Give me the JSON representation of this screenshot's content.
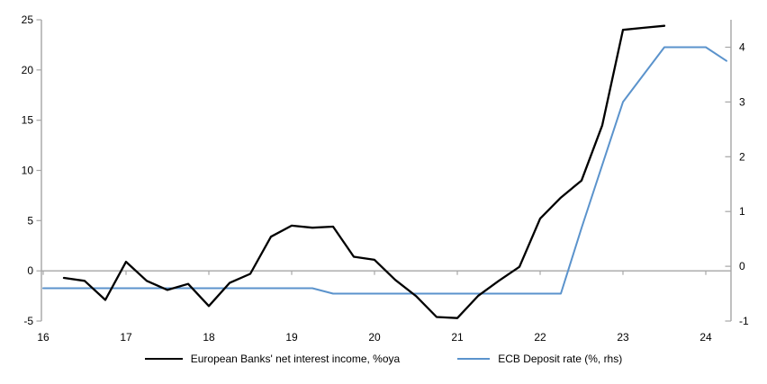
{
  "chart_data": {
    "type": "line",
    "title": "",
    "legend_position": "bottom",
    "grid": "zero-line-only",
    "axis_color": "#a6a6a6",
    "x_ticks": [
      16,
      17,
      18,
      19,
      20,
      21,
      22,
      23,
      24
    ],
    "x_range": [
      15.978,
      24.304
    ],
    "left_axis": {
      "ticks": [
        25,
        20,
        15,
        10,
        5,
        0,
        -5
      ],
      "range": [
        -5,
        25
      ]
    },
    "right_axis": {
      "ticks": [
        4,
        3,
        2,
        1,
        0,
        -1
      ],
      "range": [
        -1,
        4.5
      ]
    },
    "series": [
      {
        "name": "European Banks' net interest income, %oya",
        "color": "#000000",
        "axis": "left",
        "x": [
          16.25,
          16.5,
          16.75,
          17,
          17.25,
          17.5,
          17.75,
          18,
          18.25,
          18.5,
          18.75,
          19,
          19.25,
          19.5,
          19.75,
          20,
          20.25,
          20.5,
          20.75,
          21,
          21.25,
          21.5,
          21.75,
          22,
          22.25,
          22.5,
          22.75,
          23,
          23.25,
          23.5
        ],
        "values": [
          -0.7,
          -1.0,
          -2.9,
          0.9,
          -1.0,
          -1.9,
          -1.3,
          -3.5,
          -1.2,
          -0.3,
          3.4,
          4.5,
          4.3,
          4.4,
          1.4,
          1.1,
          -0.9,
          -2.5,
          -4.6,
          -4.7,
          -2.5,
          -1.0,
          0.4,
          5.2,
          7.3,
          9.0,
          14.5,
          24.0,
          24.2,
          24.4
        ]
      },
      {
        "name": "ECB Deposit rate (%, rhs)",
        "color": "#5b93cc",
        "axis": "right",
        "x": [
          16,
          16.25,
          16.5,
          16.75,
          17,
          17.25,
          17.5,
          17.75,
          18,
          18.25,
          18.5,
          18.75,
          19,
          19.25,
          19.5,
          19.75,
          20,
          20.25,
          20.5,
          20.75,
          21,
          21.25,
          21.5,
          21.75,
          22,
          22.25,
          22.5,
          22.75,
          23,
          23.25,
          23.5,
          23.75,
          24,
          24.25
        ],
        "values": [
          -0.4,
          -0.4,
          -0.4,
          -0.4,
          -0.4,
          -0.4,
          -0.4,
          -0.4,
          -0.4,
          -0.4,
          -0.4,
          -0.4,
          -0.4,
          -0.4,
          -0.5,
          -0.5,
          -0.5,
          -0.5,
          -0.5,
          -0.5,
          -0.5,
          -0.5,
          -0.5,
          -0.5,
          -0.5,
          -0.5,
          0.7,
          1.85,
          3.0,
          3.5,
          4.0,
          4.0,
          4.0,
          3.75
        ]
      }
    ]
  }
}
